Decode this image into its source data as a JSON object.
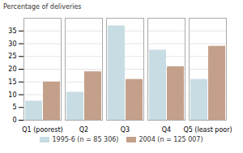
{
  "chart_data": {
    "type": "bar",
    "ylabel": "Percentage of deliveries",
    "categories": [
      "Q1 (poorest)",
      "Q2",
      "Q3",
      "Q4",
      "Q5 (least poor)"
    ],
    "series": [
      {
        "name": "1995-6 (n = 85 306)",
        "color": "#c8dde3",
        "values": [
          7.5,
          11,
          37,
          27.5,
          16
        ]
      },
      {
        "name": "2004 (n = 125 007)",
        "color": "#c4a08a",
        "values": [
          15,
          19,
          16,
          21,
          29
        ]
      }
    ],
    "ylim": [
      0,
      40
    ],
    "yticks": [
      0,
      5,
      10,
      15,
      20,
      25,
      30,
      35
    ],
    "grid": true,
    "legend": "bottom"
  }
}
